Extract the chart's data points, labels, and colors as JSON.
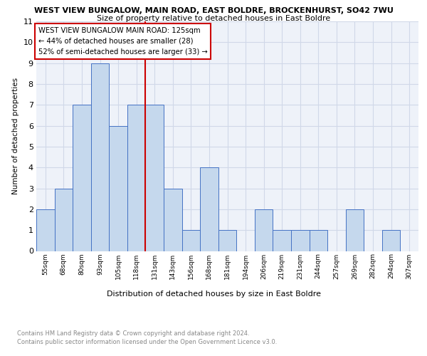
{
  "title": "WEST VIEW BUNGALOW, MAIN ROAD, EAST BOLDRE, BROCKENHURST, SO42 7WU",
  "subtitle": "Size of property relative to detached houses in East Boldre",
  "xlabel": "Distribution of detached houses by size in East Boldre",
  "ylabel": "Number of detached properties",
  "categories": [
    "55sqm",
    "68sqm",
    "80sqm",
    "93sqm",
    "105sqm",
    "118sqm",
    "131sqm",
    "143sqm",
    "156sqm",
    "168sqm",
    "181sqm",
    "194sqm",
    "206sqm",
    "219sqm",
    "231sqm",
    "244sqm",
    "257sqm",
    "269sqm",
    "282sqm",
    "294sqm",
    "307sqm"
  ],
  "values": [
    2,
    3,
    7,
    9,
    6,
    7,
    7,
    3,
    1,
    4,
    1,
    0,
    2,
    1,
    1,
    1,
    0,
    2,
    0,
    1,
    0
  ],
  "bar_color": "#c5d8ed",
  "bar_edge_color": "#4472c4",
  "grid_color": "#d0d8e8",
  "vline_x": 5.5,
  "vline_color": "#cc0000",
  "annotation_lines": [
    "WEST VIEW BUNGALOW MAIN ROAD: 125sqm",
    "← 44% of detached houses are smaller (28)",
    "52% of semi-detached houses are larger (33) →"
  ],
  "annotation_box_edge": "#cc0000",
  "ylim": [
    0,
    11
  ],
  "yticks": [
    0,
    1,
    2,
    3,
    4,
    5,
    6,
    7,
    8,
    9,
    10,
    11
  ],
  "footnote1": "Contains HM Land Registry data © Crown copyright and database right 2024.",
  "footnote2": "Contains public sector information licensed under the Open Government Licence v3.0.",
  "bg_color": "#eef2f9"
}
